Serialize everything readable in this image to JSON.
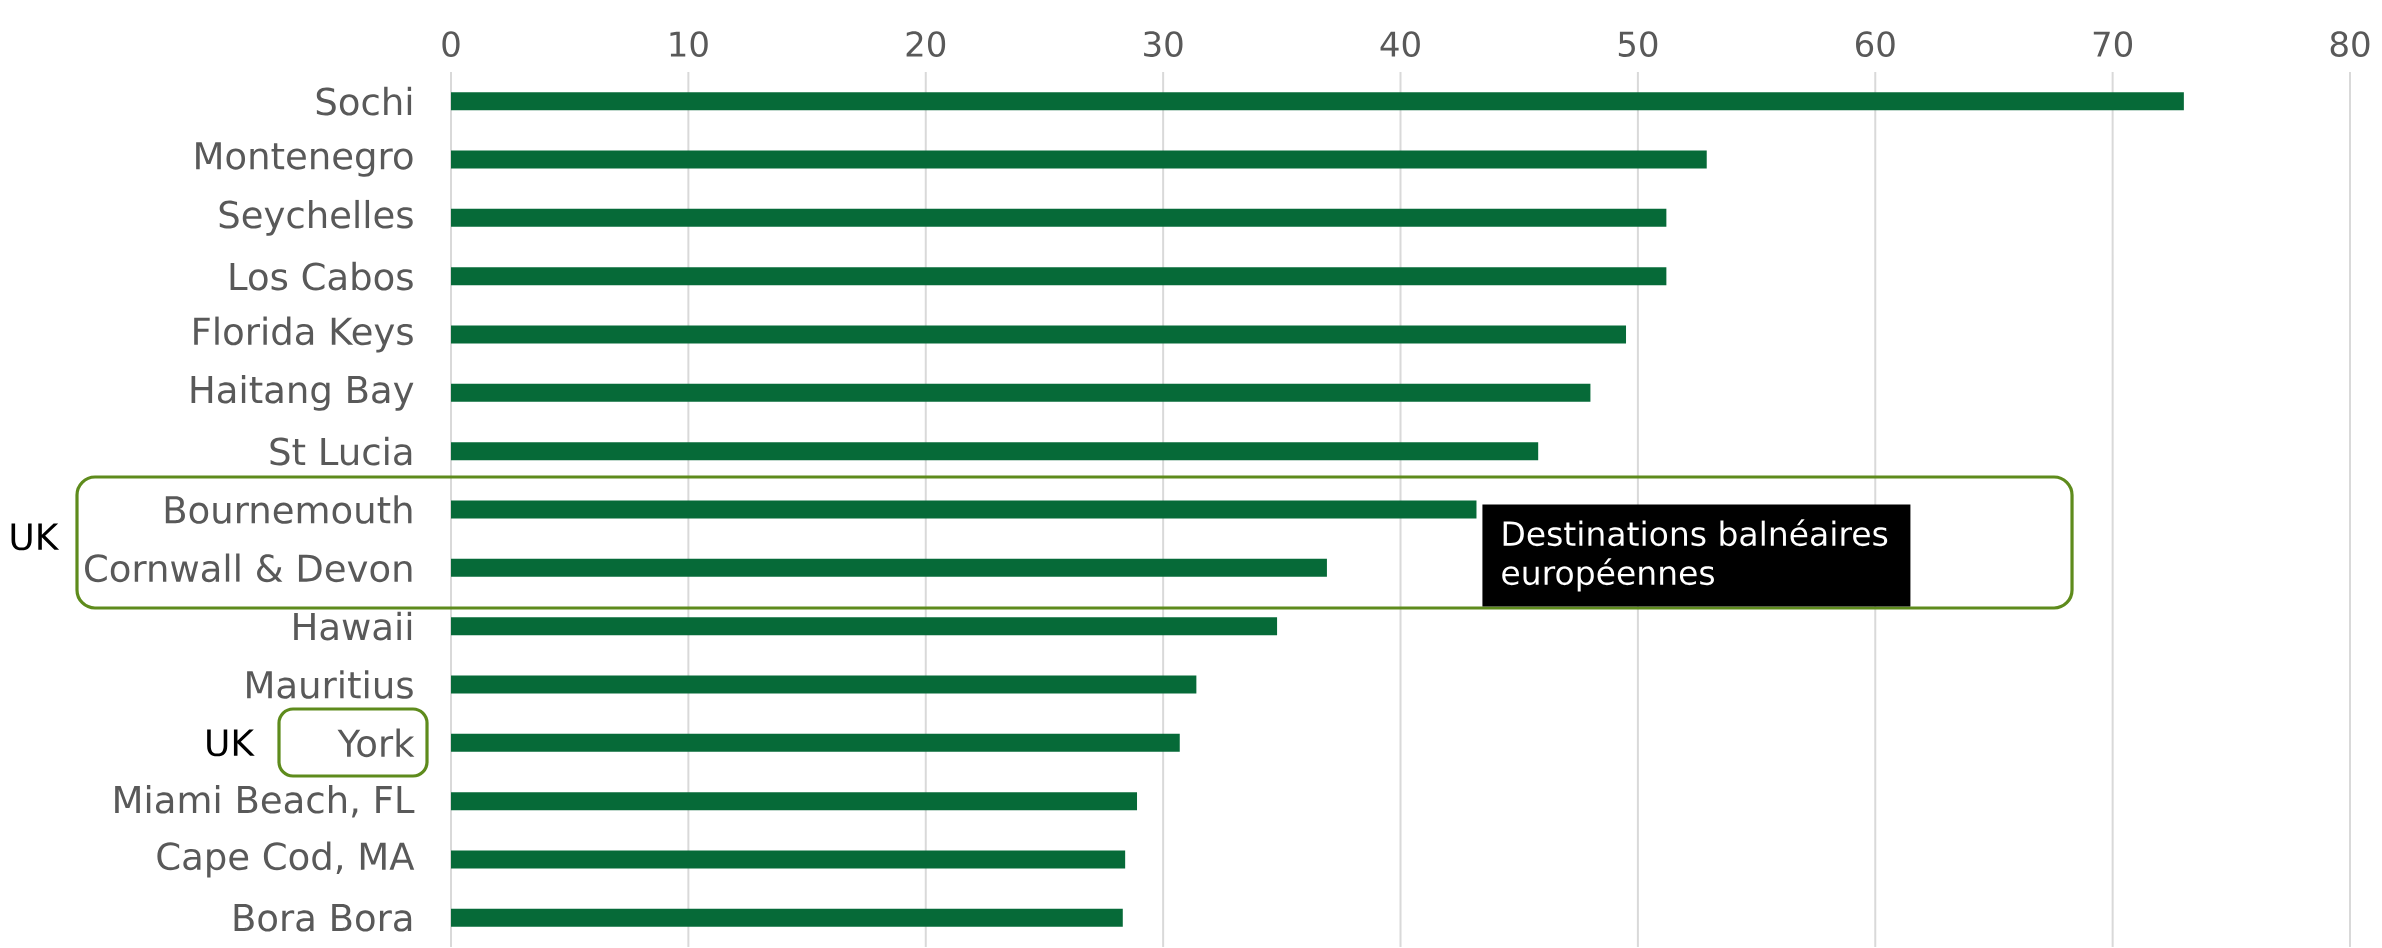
{
  "chart_data": {
    "type": "bar",
    "orientation": "horizontal",
    "categories": [
      "Sochi",
      "Montenegro",
      "Seychelles",
      "Los Cabos",
      "Florida Keys",
      "Haitang Bay",
      "St Lucia",
      "Bournemouth",
      "Cornwall & Devon",
      "Hawaii",
      "Mauritius",
      "York",
      "Miami Beach, FL",
      "Cape Cod, MA",
      "Bora Bora"
    ],
    "values": [
      73.0,
      52.9,
      51.2,
      51.2,
      49.5,
      48.0,
      45.8,
      43.2,
      36.9,
      34.8,
      31.4,
      30.7,
      28.9,
      28.4,
      28.3
    ],
    "color": "#066a38",
    "xlim": [
      0,
      80
    ],
    "xticks": [
      0,
      10,
      20,
      30,
      40,
      50,
      60,
      70,
      80
    ],
    "grid": "x",
    "annotations": [
      "UK",
      "UK",
      "Destinations balnéaires européennes"
    ]
  }
}
